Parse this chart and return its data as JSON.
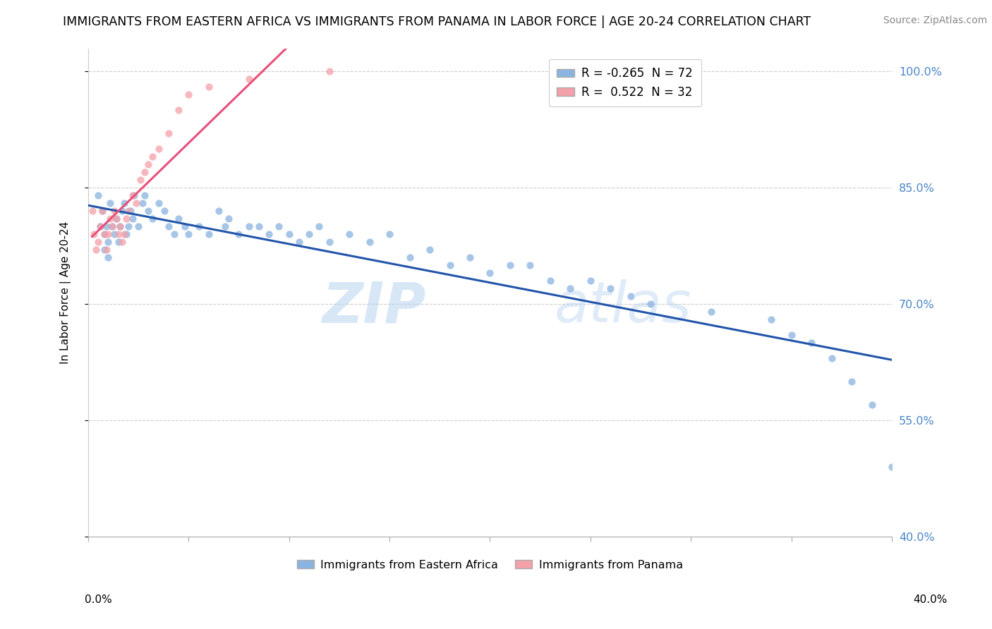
{
  "title": "IMMIGRANTS FROM EASTERN AFRICA VS IMMIGRANTS FROM PANAMA IN LABOR FORCE | AGE 20-24 CORRELATION CHART",
  "source": "Source: ZipAtlas.com",
  "ylabel": "In Labor Force | Age 20-24",
  "legend_bottom": [
    "Immigrants from Eastern Africa",
    "Immigrants from Panama"
  ],
  "blue_legend": "R = -0.265  N = 72",
  "pink_legend": "R =  0.522  N = 32",
  "blue_color": "#8ab4e0",
  "pink_color": "#f4a0a8",
  "trend_blue": "#2255aa",
  "trend_pink": "#e8507a",
  "xlim": [
    0.0,
    0.4
  ],
  "ylim": [
    0.4,
    1.03
  ],
  "yticks": [
    0.4,
    0.55,
    0.7,
    0.85,
    1.0
  ],
  "ytick_labels": [
    "40.0%",
    "55.0%",
    "70.0%",
    "85.0%",
    "100.0%"
  ],
  "xtick_left": "0.0%",
  "xtick_right": "40.0%",
  "watermark_zip": "ZIP",
  "watermark_atlas": "atlas",
  "blue_x": [
    0.005,
    0.006,
    0.007,
    0.008,
    0.008,
    0.009,
    0.01,
    0.01,
    0.011,
    0.012,
    0.013,
    0.014,
    0.015,
    0.016,
    0.017,
    0.018,
    0.019,
    0.02,
    0.021,
    0.022,
    0.023,
    0.025,
    0.027,
    0.028,
    0.03,
    0.032,
    0.035,
    0.038,
    0.04,
    0.043,
    0.045,
    0.048,
    0.05,
    0.055,
    0.06,
    0.065,
    0.068,
    0.07,
    0.075,
    0.08,
    0.085,
    0.09,
    0.095,
    0.1,
    0.105,
    0.11,
    0.115,
    0.12,
    0.13,
    0.14,
    0.15,
    0.16,
    0.17,
    0.18,
    0.19,
    0.2,
    0.21,
    0.22,
    0.23,
    0.24,
    0.25,
    0.26,
    0.27,
    0.28,
    0.31,
    0.34,
    0.35,
    0.36,
    0.37,
    0.38,
    0.39,
    0.4
  ],
  "blue_y": [
    0.84,
    0.8,
    0.82,
    0.79,
    0.77,
    0.8,
    0.76,
    0.78,
    0.83,
    0.8,
    0.79,
    0.81,
    0.78,
    0.8,
    0.82,
    0.83,
    0.79,
    0.8,
    0.82,
    0.81,
    0.84,
    0.8,
    0.83,
    0.84,
    0.82,
    0.81,
    0.83,
    0.82,
    0.8,
    0.79,
    0.81,
    0.8,
    0.79,
    0.8,
    0.79,
    0.82,
    0.8,
    0.81,
    0.79,
    0.8,
    0.8,
    0.79,
    0.8,
    0.79,
    0.78,
    0.79,
    0.8,
    0.78,
    0.79,
    0.78,
    0.79,
    0.76,
    0.77,
    0.75,
    0.76,
    0.74,
    0.75,
    0.75,
    0.73,
    0.72,
    0.73,
    0.72,
    0.71,
    0.7,
    0.69,
    0.68,
    0.66,
    0.65,
    0.63,
    0.6,
    0.57,
    0.49
  ],
  "pink_x": [
    0.002,
    0.003,
    0.004,
    0.005,
    0.006,
    0.007,
    0.008,
    0.009,
    0.01,
    0.011,
    0.012,
    0.013,
    0.014,
    0.015,
    0.016,
    0.017,
    0.018,
    0.019,
    0.02,
    0.022,
    0.024,
    0.026,
    0.028,
    0.03,
    0.032,
    0.035,
    0.04,
    0.045,
    0.05,
    0.06,
    0.08,
    0.12
  ],
  "pink_y": [
    0.82,
    0.79,
    0.77,
    0.78,
    0.8,
    0.82,
    0.79,
    0.77,
    0.79,
    0.81,
    0.8,
    0.82,
    0.81,
    0.79,
    0.8,
    0.78,
    0.79,
    0.81,
    0.82,
    0.84,
    0.83,
    0.86,
    0.87,
    0.88,
    0.89,
    0.9,
    0.92,
    0.95,
    0.97,
    0.98,
    0.99,
    1.0
  ]
}
